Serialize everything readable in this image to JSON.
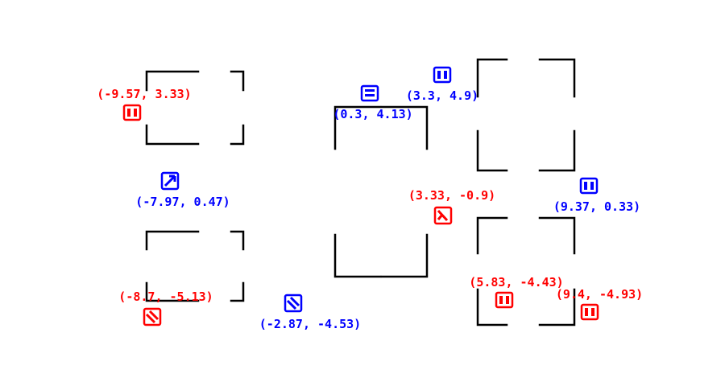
{
  "colors": {
    "red": "#ff0000",
    "blue": "#0000ff",
    "bracket": "#000000"
  },
  "markers": [
    {
      "id": "m1",
      "label": "(-9.57, 3.33)",
      "color": "red",
      "icon": "pause-bars-icon"
    },
    {
      "id": "m2",
      "label": "(-7.97, 0.47)",
      "color": "blue",
      "icon": "diagonal-arrow-icon"
    },
    {
      "id": "m3",
      "label": "(-8.7, -5.13)",
      "color": "red",
      "icon": "diagonal-stripes-icon"
    },
    {
      "id": "m4",
      "label": "(-2.87, -4.53)",
      "color": "blue",
      "icon": "diagonal-stripes-icon"
    },
    {
      "id": "m5",
      "label": "(0.3, 4.13)",
      "color": "blue",
      "icon": "horizontal-stripes-icon"
    },
    {
      "id": "m6",
      "label": "(3.3, 4.9)",
      "color": "blue",
      "icon": "pause-bars-icon"
    },
    {
      "id": "m7",
      "label": "(3.33, -0.9)",
      "color": "red",
      "icon": "diagonal-arrow-icon"
    },
    {
      "id": "m8",
      "label": "(9.37, 0.33)",
      "color": "blue",
      "icon": "pause-bars-icon"
    },
    {
      "id": "m9",
      "label": "(5.83, -4.43)",
      "color": "red",
      "icon": "pause-bars-icon"
    },
    {
      "id": "m10",
      "label": "(9.4, -4.93)",
      "color": "red",
      "icon": "pause-bars-icon"
    }
  ]
}
